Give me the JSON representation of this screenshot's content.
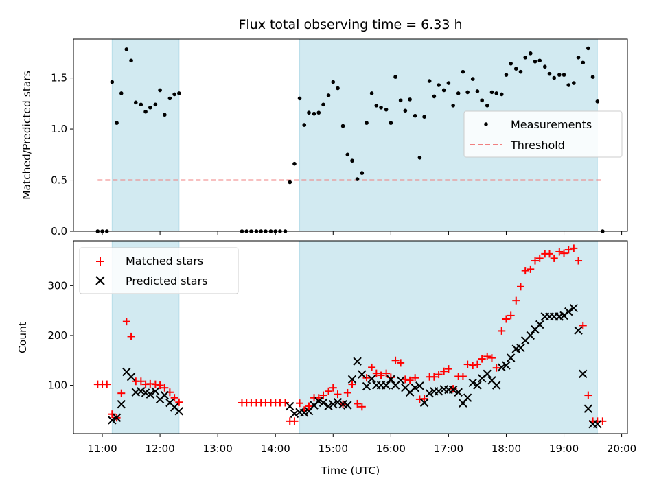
{
  "figure": {
    "title": "Flux total observing time = 6.33 h",
    "xlabel": "Time (UTC)"
  },
  "chart_data": [
    {
      "type": "scatter",
      "name": "ratio-panel",
      "ylabel": "Matched/Predicted stars",
      "xlim": [
        10.5,
        20.1
      ],
      "ylim": [
        0,
        1.88
      ],
      "yticks": [
        0.0,
        0.5,
        1.0,
        1.5
      ],
      "ytick_labels": [
        "0.0",
        "0.5",
        "1.0",
        "1.5"
      ],
      "shaded_intervals": [
        [
          11.17,
          12.33
        ],
        [
          14.42,
          19.58
        ]
      ],
      "shade_color": "#add8e6",
      "threshold": {
        "name": "Threshold",
        "value": 0.5,
        "x_range": [
          10.92,
          19.67
        ],
        "color": "#f08080"
      },
      "legend": {
        "placement": "center-right",
        "entries": [
          "Measurements",
          "Threshold"
        ]
      },
      "series": [
        {
          "name": "Measurements",
          "color": "#000000",
          "x": [
            10.92,
            11.0,
            11.08,
            11.17,
            11.25,
            11.33,
            11.42,
            11.5,
            11.58,
            11.67,
            11.75,
            11.83,
            11.92,
            12.0,
            12.08,
            12.17,
            12.25,
            12.33,
            13.42,
            13.5,
            13.58,
            13.67,
            13.75,
            13.83,
            13.92,
            14.0,
            14.08,
            14.17,
            14.25,
            14.33,
            14.42,
            14.5,
            14.58,
            14.67,
            14.75,
            14.83,
            14.92,
            15.0,
            15.08,
            15.17,
            15.25,
            15.33,
            15.42,
            15.5,
            15.58,
            15.67,
            15.75,
            15.83,
            15.92,
            16.0,
            16.08,
            16.17,
            16.25,
            16.33,
            16.42,
            16.5,
            16.58,
            16.67,
            16.75,
            16.83,
            16.92,
            17.0,
            17.08,
            17.17,
            17.25,
            17.33,
            17.42,
            17.5,
            17.58,
            17.67,
            17.75,
            17.83,
            17.92,
            18.0,
            18.08,
            18.17,
            18.25,
            18.33,
            18.42,
            18.5,
            18.58,
            18.67,
            18.75,
            18.83,
            18.92,
            19.0,
            19.08,
            19.17,
            19.25,
            19.33,
            19.42,
            19.5,
            19.58,
            19.67
          ],
          "y": [
            0.0,
            0.0,
            0.0,
            1.46,
            1.06,
            1.35,
            1.78,
            1.67,
            1.26,
            1.24,
            1.17,
            1.21,
            1.24,
            1.38,
            1.14,
            1.3,
            1.34,
            1.35,
            0.0,
            0.0,
            0.0,
            0.0,
            0.0,
            0.0,
            0.0,
            0.0,
            0.0,
            0.0,
            0.48,
            0.66,
            1.3,
            1.04,
            1.16,
            1.15,
            1.16,
            1.24,
            1.33,
            1.46,
            1.4,
            1.03,
            0.75,
            0.69,
            0.51,
            0.57,
            1.06,
            1.35,
            1.23,
            1.21,
            1.19,
            1.06,
            1.51,
            1.28,
            1.18,
            1.29,
            1.13,
            0.72,
            1.12,
            1.47,
            1.32,
            1.43,
            1.38,
            1.45,
            1.23,
            1.35,
            1.56,
            1.36,
            1.49,
            1.37,
            1.28,
            1.23,
            1.36,
            1.35,
            1.34,
            1.53,
            1.64,
            1.59,
            1.56,
            1.7,
            1.74,
            1.66,
            1.67,
            1.61,
            1.54,
            1.5,
            1.53,
            1.53,
            1.43,
            1.45,
            1.7,
            1.65,
            1.79,
            1.51,
            1.27,
            0.0
          ]
        }
      ]
    },
    {
      "type": "scatter",
      "name": "count-panel",
      "ylabel": "Count",
      "xlim": [
        10.5,
        20.1
      ],
      "ylim": [
        3,
        390
      ],
      "yticks": [
        100,
        200,
        300
      ],
      "ytick_labels": [
        "100",
        "200",
        "300"
      ],
      "xticks": [
        11,
        12,
        13,
        14,
        15,
        16,
        17,
        18,
        19,
        20
      ],
      "xtick_labels": [
        "11:00",
        "12:00",
        "13:00",
        "14:00",
        "15:00",
        "16:00",
        "17:00",
        "18:00",
        "19:00",
        "20:00"
      ],
      "shaded_intervals": [
        [
          11.17,
          12.33
        ],
        [
          14.42,
          19.58
        ]
      ],
      "shade_color": "#add8e6",
      "legend": {
        "placement": "top-left",
        "entries": [
          "Matched stars",
          "Predicted stars"
        ]
      },
      "series": [
        {
          "name": "Matched stars",
          "marker": "plus",
          "color": "#ff0000",
          "x": [
            10.92,
            11.0,
            11.08,
            11.17,
            11.25,
            11.33,
            11.42,
            11.5,
            11.58,
            11.67,
            11.75,
            11.83,
            11.92,
            12.0,
            12.08,
            12.17,
            12.25,
            12.33,
            13.42,
            13.5,
            13.58,
            13.67,
            13.75,
            13.83,
            13.92,
            14.0,
            14.08,
            14.17,
            14.25,
            14.33,
            14.42,
            14.5,
            14.58,
            14.67,
            14.75,
            14.83,
            14.92,
            15.0,
            15.08,
            15.17,
            15.25,
            15.33,
            15.42,
            15.5,
            15.58,
            15.67,
            15.75,
            15.83,
            15.92,
            16.0,
            16.08,
            16.17,
            16.25,
            16.33,
            16.42,
            16.5,
            16.58,
            16.67,
            16.75,
            16.83,
            16.92,
            17.0,
            17.08,
            17.17,
            17.25,
            17.33,
            17.42,
            17.5,
            17.58,
            17.67,
            17.75,
            17.83,
            17.92,
            18.0,
            18.08,
            18.17,
            18.25,
            18.33,
            18.42,
            18.5,
            18.58,
            18.67,
            18.75,
            18.83,
            18.92,
            19.0,
            19.08,
            19.17,
            19.25,
            19.33,
            19.42,
            19.5,
            19.58,
            19.67
          ],
          "y": [
            102,
            102,
            102,
            42,
            35,
            84,
            228,
            198,
            108,
            108,
            102,
            103,
            102,
            100,
            95,
            86,
            75,
            66,
            65,
            65,
            65,
            65,
            65,
            65,
            65,
            65,
            65,
            65,
            28,
            28,
            64,
            50,
            58,
            75,
            75,
            80,
            88,
            95,
            82,
            62,
            85,
            102,
            63,
            57,
            115,
            136,
            124,
            120,
            124,
            116,
            150,
            145,
            112,
            110,
            115,
            72,
            73,
            117,
            117,
            122,
            128,
            133,
            93,
            118,
            118,
            142,
            140,
            142,
            153,
            158,
            155,
            135,
            209,
            233,
            240,
            270,
            298,
            330,
            333,
            350,
            355,
            364,
            364,
            355,
            368,
            365,
            372,
            375,
            350,
            220,
            80,
            28,
            28,
            28
          ]
        },
        {
          "name": "Predicted stars",
          "marker": "x",
          "color": "#000000",
          "x": [
            11.17,
            11.25,
            11.33,
            11.42,
            11.5,
            11.58,
            11.67,
            11.75,
            11.83,
            11.92,
            12.0,
            12.08,
            12.17,
            12.25,
            12.33,
            14.25,
            14.33,
            14.42,
            14.5,
            14.58,
            14.67,
            14.75,
            14.83,
            14.92,
            15.0,
            15.08,
            15.17,
            15.25,
            15.33,
            15.42,
            15.5,
            15.58,
            15.67,
            15.75,
            15.83,
            15.92,
            16.0,
            16.08,
            16.17,
            16.25,
            16.33,
            16.42,
            16.5,
            16.58,
            16.67,
            16.75,
            16.83,
            16.92,
            17.0,
            17.08,
            17.17,
            17.25,
            17.33,
            17.42,
            17.5,
            17.58,
            17.67,
            17.75,
            17.83,
            17.92,
            18.0,
            18.08,
            18.17,
            18.25,
            18.33,
            18.42,
            18.5,
            18.58,
            18.67,
            18.75,
            18.83,
            18.92,
            19.0,
            19.08,
            19.17,
            19.25,
            19.33,
            19.42,
            19.5,
            19.58
          ],
          "y": [
            30,
            35,
            62,
            127,
            117,
            86,
            88,
            85,
            82,
            88,
            72,
            80,
            65,
            56,
            48,
            58,
            43,
            46,
            45,
            48,
            60,
            68,
            65,
            58,
            62,
            66,
            62,
            60,
            112,
            148,
            122,
            98,
            113,
            100,
            100,
            100,
            112,
            100,
            110,
            95,
            86,
            95,
            99,
            65,
            84,
            88,
            88,
            92,
            91,
            91,
            86,
            64,
            75,
            105,
            100,
            114,
            123,
            110,
            100,
            136,
            140,
            155,
            173,
            175,
            190,
            200,
            212,
            222,
            238,
            238,
            238,
            238,
            240,
            248,
            255,
            210,
            123,
            53,
            22,
            22
          ]
        }
      ]
    }
  ]
}
